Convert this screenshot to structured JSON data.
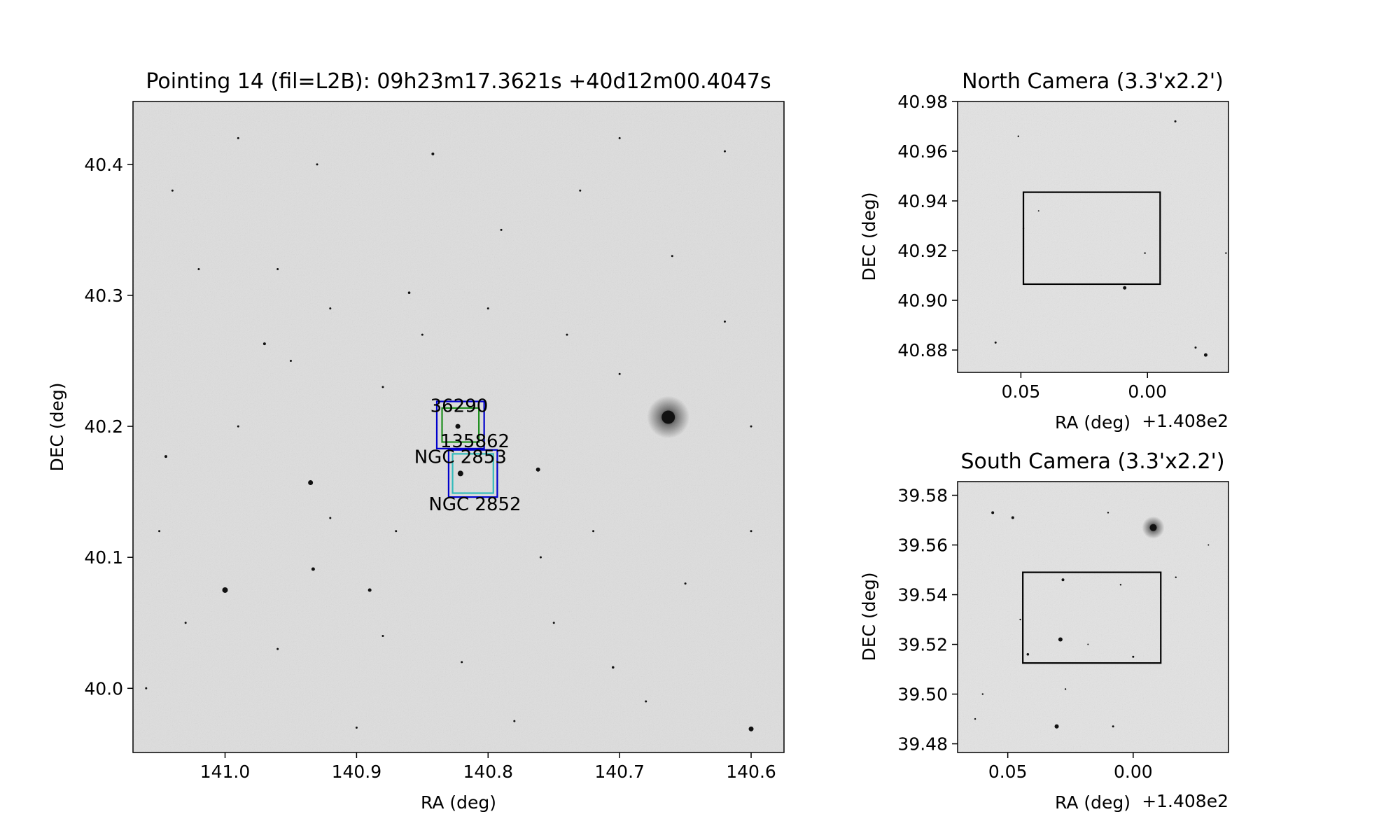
{
  "chart_data": [
    {
      "type": "image",
      "id": "main",
      "title": "Pointing 14 (fil=L2B): 09h23m17.3621s +40d12m00.4047s",
      "xlabel": "RA (deg)",
      "ylabel": "DEC (deg)",
      "xlim": [
        141.07,
        140.575
      ],
      "ylim": [
        39.951,
        40.448
      ],
      "x_ticks": [
        141.0,
        140.9,
        140.8,
        140.7,
        140.6
      ],
      "x_tick_labels": [
        "141.0",
        "140.9",
        "140.8",
        "140.7",
        "140.6"
      ],
      "y_ticks": [
        40.0,
        40.1,
        40.2,
        40.3,
        40.4
      ],
      "y_tick_labels": [
        "40.0",
        "40.1",
        "40.2",
        "40.3",
        "40.4"
      ],
      "annotations": [
        {
          "text": "36290",
          "x": 140.822,
          "y": 40.211
        },
        {
          "text": "135862",
          "x": 140.81,
          "y": 40.184
        },
        {
          "text": "NGC 2853",
          "x": 140.821,
          "y": 40.172
        },
        {
          "text": "NGC 2852",
          "x": 140.81,
          "y": 40.136
        }
      ],
      "boxes": [
        {
          "name": "36290",
          "color": "#0000cc",
          "x": [
            140.839,
            140.803
          ],
          "y": [
            40.219,
            40.183
          ]
        },
        {
          "name": "36290-inner",
          "color": "#1f8f1f",
          "x": [
            140.835,
            140.807
          ],
          "y": [
            40.214,
            40.188
          ]
        },
        {
          "name": "NGC 2852",
          "color": "#0000cc",
          "x": [
            140.83,
            140.793
          ],
          "y": [
            40.182,
            40.146
          ]
        },
        {
          "name": "NGC 2852-inner",
          "color": "#33bbbb",
          "x": [
            140.827,
            140.796
          ],
          "y": [
            40.179,
            40.149
          ]
        }
      ],
      "stars": [
        {
          "x": 140.663,
          "y": 40.207,
          "m": 9.5
        },
        {
          "x": 140.821,
          "y": 40.164,
          "m": 4
        },
        {
          "x": 140.823,
          "y": 40.2,
          "m": 3.5
        },
        {
          "x": 140.935,
          "y": 40.157,
          "m": 3.5
        },
        {
          "x": 141.0,
          "y": 40.075,
          "m": 4
        },
        {
          "x": 140.762,
          "y": 40.167,
          "m": 3
        },
        {
          "x": 140.6,
          "y": 39.969,
          "m": 3.5
        },
        {
          "x": 140.933,
          "y": 40.091,
          "m": 2.5
        },
        {
          "x": 140.89,
          "y": 40.075,
          "m": 2.5
        },
        {
          "x": 140.842,
          "y": 40.408,
          "m": 2
        },
        {
          "x": 140.97,
          "y": 40.263,
          "m": 2
        },
        {
          "x": 141.045,
          "y": 40.177,
          "m": 2
        },
        {
          "x": 140.86,
          "y": 40.302,
          "m": 1.8
        },
        {
          "x": 140.705,
          "y": 40.016,
          "m": 1.8
        },
        {
          "x": 140.93,
          "y": 40.4,
          "m": 1.5
        },
        {
          "x": 140.79,
          "y": 40.35,
          "m": 1.5
        },
        {
          "x": 140.73,
          "y": 40.38,
          "m": 1.5
        },
        {
          "x": 140.66,
          "y": 40.33,
          "m": 1.5
        },
        {
          "x": 140.96,
          "y": 40.32,
          "m": 1.5
        },
        {
          "x": 141.02,
          "y": 40.32,
          "m": 1.5
        },
        {
          "x": 140.99,
          "y": 40.2,
          "m": 1.5
        },
        {
          "x": 140.95,
          "y": 40.25,
          "m": 1.5
        },
        {
          "x": 140.88,
          "y": 40.23,
          "m": 1.5
        },
        {
          "x": 140.74,
          "y": 40.27,
          "m": 1.5
        },
        {
          "x": 140.7,
          "y": 40.24,
          "m": 1.5
        },
        {
          "x": 140.62,
          "y": 40.28,
          "m": 1.5
        },
        {
          "x": 140.6,
          "y": 40.2,
          "m": 1.5
        },
        {
          "x": 140.72,
          "y": 40.12,
          "m": 1.5
        },
        {
          "x": 140.65,
          "y": 40.08,
          "m": 1.5
        },
        {
          "x": 140.6,
          "y": 40.12,
          "m": 1.5
        },
        {
          "x": 140.75,
          "y": 40.05,
          "m": 1.5
        },
        {
          "x": 140.82,
          "y": 40.02,
          "m": 1.5
        },
        {
          "x": 140.88,
          "y": 40.04,
          "m": 1.5
        },
        {
          "x": 140.96,
          "y": 40.03,
          "m": 1.5
        },
        {
          "x": 141.03,
          "y": 40.05,
          "m": 1.5
        },
        {
          "x": 141.06,
          "y": 40.0,
          "m": 1.5
        },
        {
          "x": 140.9,
          "y": 39.97,
          "m": 1.5
        },
        {
          "x": 140.78,
          "y": 39.975,
          "m": 1.5
        },
        {
          "x": 140.68,
          "y": 39.99,
          "m": 1.5
        },
        {
          "x": 140.92,
          "y": 40.13,
          "m": 1.5
        },
        {
          "x": 140.87,
          "y": 40.12,
          "m": 1.5
        },
        {
          "x": 140.76,
          "y": 40.1,
          "m": 1.5
        },
        {
          "x": 141.05,
          "y": 40.12,
          "m": 1.5
        },
        {
          "x": 141.04,
          "y": 40.38,
          "m": 1.5
        },
        {
          "x": 140.99,
          "y": 40.42,
          "m": 1.5
        },
        {
          "x": 140.7,
          "y": 40.42,
          "m": 1.5
        },
        {
          "x": 140.62,
          "y": 40.41,
          "m": 1.5
        },
        {
          "x": 140.85,
          "y": 40.27,
          "m": 1.5
        },
        {
          "x": 140.8,
          "y": 40.29,
          "m": 1.5
        },
        {
          "x": 140.92,
          "y": 40.29,
          "m": 1.5
        }
      ]
    },
    {
      "type": "image",
      "id": "north",
      "title": "North Camera (3.3'x2.2')",
      "xlabel": "RA (deg)",
      "ylabel": "DEC (deg)",
      "offset_label": "+1.408e2",
      "xlim": [
        0.075,
        -0.032
      ],
      "ylim": [
        40.871,
        40.98
      ],
      "x_ticks": [
        0.05,
        0.0
      ],
      "x_tick_labels": [
        "0.05",
        "0.00"
      ],
      "y_ticks": [
        40.88,
        40.9,
        40.92,
        40.94,
        40.96,
        40.98
      ],
      "y_tick_labels": [
        "40.88",
        "40.90",
        "40.92",
        "40.94",
        "40.96",
        "40.98"
      ],
      "boxes": [
        {
          "name": "field",
          "color": "#000000",
          "x": [
            0.049,
            -0.005
          ],
          "y": [
            40.9435,
            40.9065
          ]
        }
      ],
      "stars": [
        {
          "x": 0.009,
          "y": 40.905,
          "m": 2.5
        },
        {
          "x": -0.023,
          "y": 40.878,
          "m": 2.5
        },
        {
          "x": -0.019,
          "y": 40.881,
          "m": 1.5
        },
        {
          "x": 0.06,
          "y": 40.883,
          "m": 1.5
        },
        {
          "x": -0.011,
          "y": 40.972,
          "m": 1.5
        },
        {
          "x": 0.051,
          "y": 40.966,
          "m": 1.2
        },
        {
          "x": 0.001,
          "y": 40.919,
          "m": 1.2
        },
        {
          "x": 0.049,
          "y": 40.929,
          "m": 1.2
        },
        {
          "x": -0.031,
          "y": 40.919,
          "m": 1.2
        },
        {
          "x": 0.043,
          "y": 40.936,
          "m": 1
        }
      ]
    },
    {
      "type": "image",
      "id": "south",
      "title": "South Camera (3.3'x2.2')",
      "xlabel": "RA (deg)",
      "ylabel": "DEC (deg)",
      "offset_label": "+1.408e2",
      "xlim": [
        0.07,
        -0.038
      ],
      "ylim": [
        39.4765,
        39.5855
      ],
      "x_ticks": [
        0.05,
        0.0
      ],
      "x_tick_labels": [
        "0.05",
        "0.00"
      ],
      "y_ticks": [
        39.48,
        39.5,
        39.52,
        39.54,
        39.56,
        39.58
      ],
      "y_tick_labels": [
        "39.48",
        "39.50",
        "39.52",
        "39.54",
        "39.56",
        "39.58"
      ],
      "boxes": [
        {
          "name": "field",
          "color": "#000000",
          "x": [
            0.044,
            -0.011
          ],
          "y": [
            39.549,
            39.5125
          ]
        }
      ],
      "stars": [
        {
          "x": -0.008,
          "y": 39.567,
          "m": 5
        },
        {
          "x": 0.029,
          "y": 39.522,
          "m": 3
        },
        {
          "x": 0.0305,
          "y": 39.487,
          "m": 3
        },
        {
          "x": 0.028,
          "y": 39.546,
          "m": 2
        },
        {
          "x": 0.056,
          "y": 39.573,
          "m": 2
        },
        {
          "x": 0.048,
          "y": 39.571,
          "m": 2
        },
        {
          "x": 0.042,
          "y": 39.516,
          "m": 1.8
        },
        {
          "x": 0.0,
          "y": 39.515,
          "m": 1.5
        },
        {
          "x": 0.008,
          "y": 39.487,
          "m": 1.5
        },
        {
          "x": 0.027,
          "y": 39.502,
          "m": 1.2
        },
        {
          "x": 0.063,
          "y": 39.49,
          "m": 1.2
        },
        {
          "x": 0.06,
          "y": 39.5,
          "m": 1.2
        },
        {
          "x": 0.045,
          "y": 39.53,
          "m": 1.2
        },
        {
          "x": 0.01,
          "y": 39.573,
          "m": 1.2
        },
        {
          "x": -0.017,
          "y": 39.547,
          "m": 1.2
        },
        {
          "x": 0.005,
          "y": 39.544,
          "m": 1.2
        },
        {
          "x": 0.018,
          "y": 39.52,
          "m": 1
        },
        {
          "x": -0.03,
          "y": 39.56,
          "m": 1
        }
      ]
    }
  ]
}
